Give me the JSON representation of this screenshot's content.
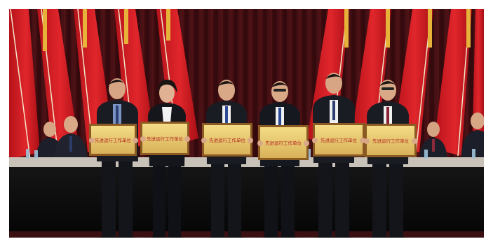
{
  "photo": {
    "plaques": [
      {
        "title": "先进运行工作单位"
      },
      {
        "title": "先进运行工作单位"
      },
      {
        "title": "先进运行工作单位"
      },
      {
        "title": "先进运行工作单位"
      },
      {
        "title": "先进运行工作单位"
      },
      {
        "title": "先进运行工作单位"
      }
    ]
  }
}
